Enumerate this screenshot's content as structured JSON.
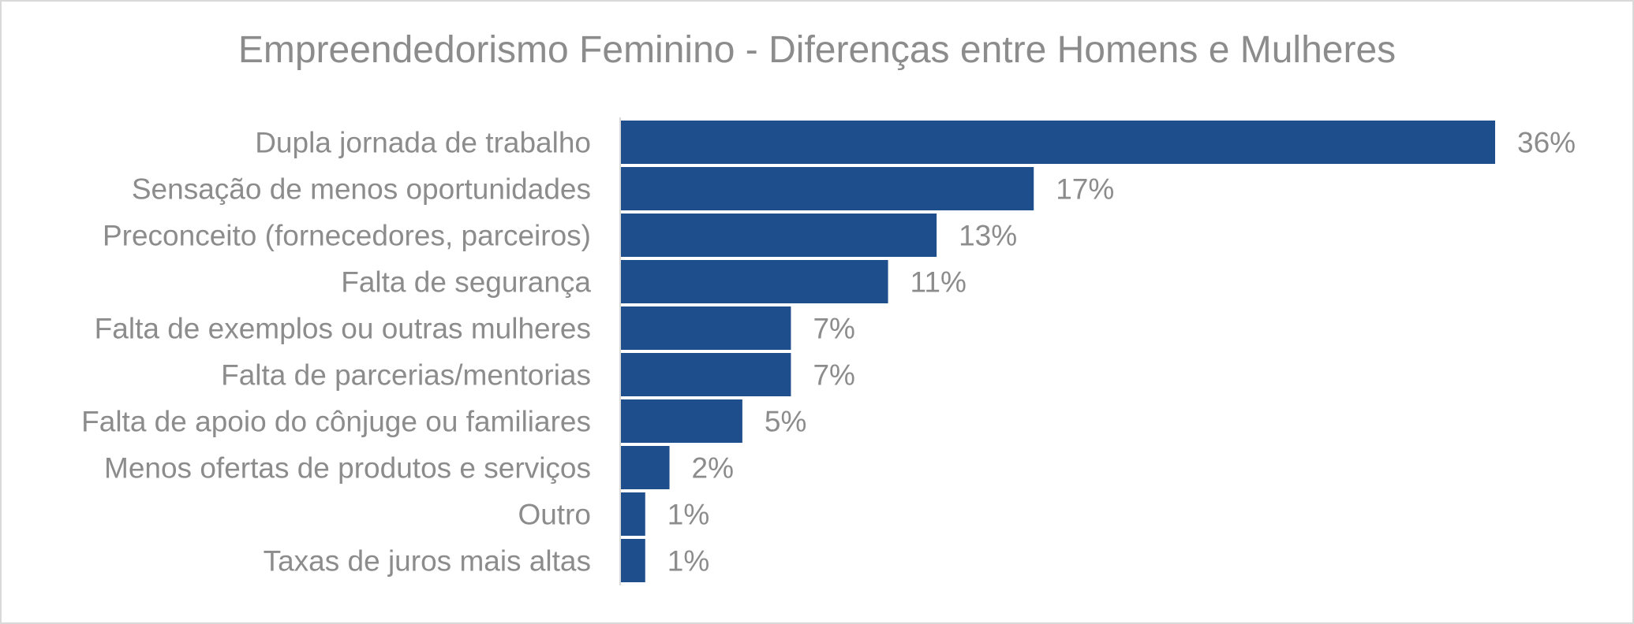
{
  "chart_data": {
    "type": "bar",
    "orientation": "horizontal",
    "title": "Empreendedorismo Feminino - Diferenças entre Homens e Mulheres",
    "categories": [
      "Dupla jornada de trabalho",
      "Sensação de menos oportunidades",
      "Preconceito (fornecedores, parceiros)",
      "Falta de segurança",
      "Falta de exemplos ou outras mulheres",
      "Falta de parcerias/mentorias",
      "Falta de apoio do cônjuge ou familiares",
      "Menos ofertas de produtos e serviços",
      "Outro",
      "Taxas de juros mais altas"
    ],
    "values": [
      36,
      17,
      13,
      11,
      7,
      7,
      5,
      2,
      1,
      1
    ],
    "value_labels": [
      "36%",
      "17%",
      "13%",
      "11%",
      "7%",
      "7%",
      "5%",
      "2%",
      "1%",
      "1%"
    ],
    "unit": "%",
    "bar_color": "#1f4e8c",
    "text_color": "#8c8c8c",
    "grid": false,
    "legend": "none"
  }
}
